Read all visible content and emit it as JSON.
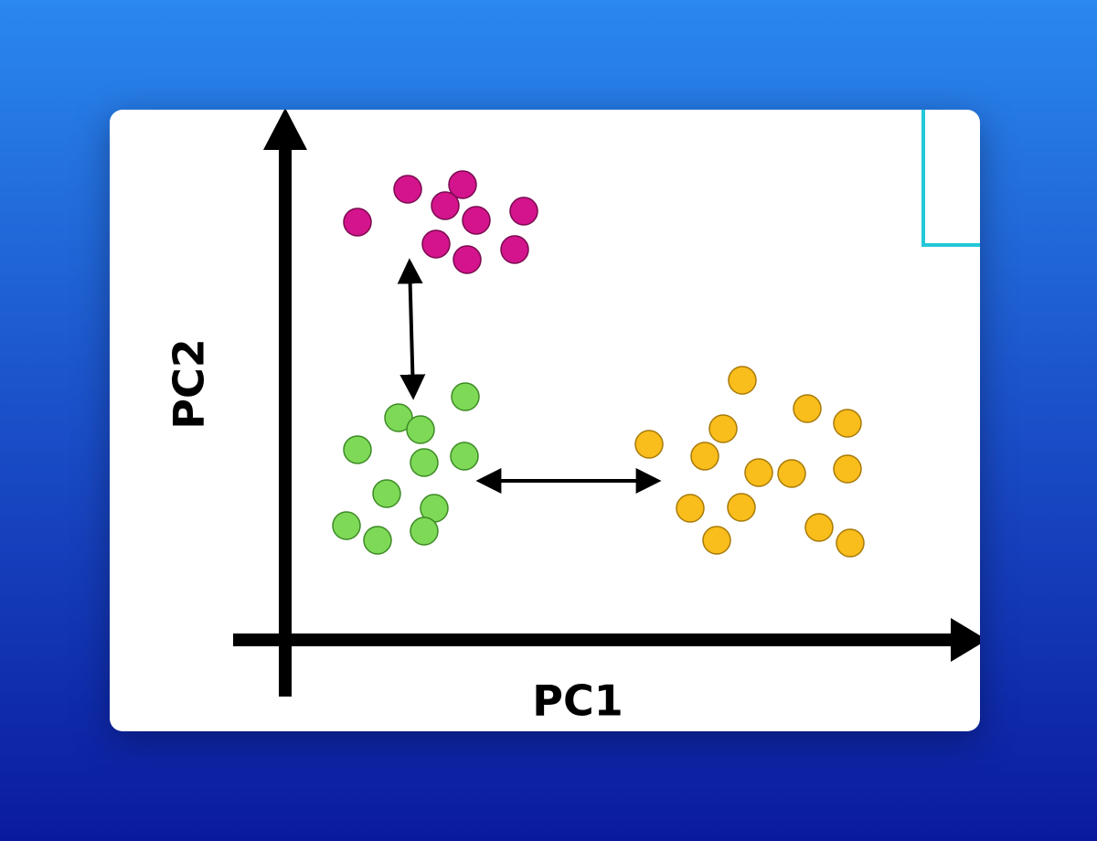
{
  "axes": {
    "x_label": "PC1",
    "y_label": "PC2"
  }
}
